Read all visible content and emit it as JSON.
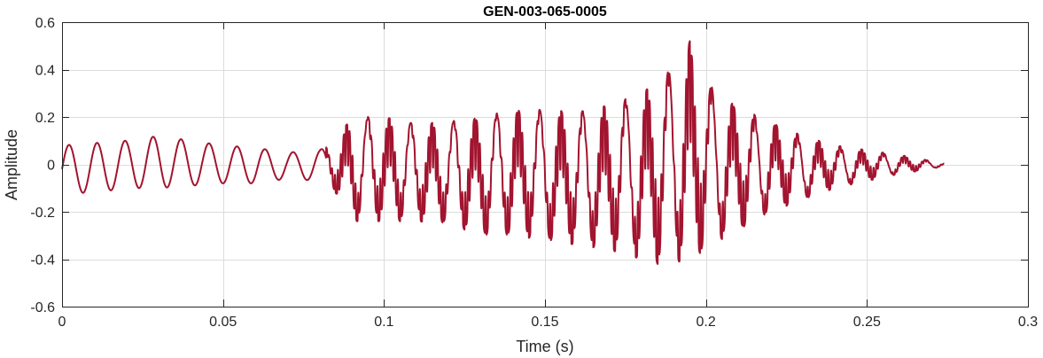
{
  "chart_data": {
    "type": "line",
    "title": "GEN-003-065-0005",
    "xlabel": "Time (s)",
    "ylabel": "Amplitude",
    "xlim": [
      0,
      0.3
    ],
    "ylim": [
      -0.6,
      0.6
    ],
    "grid": true,
    "xticks": [
      0,
      0.05,
      0.1,
      0.15,
      0.2,
      0.25,
      0.3
    ],
    "xtick_labels": [
      "0",
      "0.05",
      "0.1",
      "0.15",
      "0.2",
      "0.25",
      "0.3"
    ],
    "yticks": [
      -0.6,
      -0.4,
      -0.2,
      0,
      0.2,
      0.4,
      0.6
    ],
    "ytick_labels": [
      "-0.6",
      "-0.4",
      "-0.2",
      "0",
      "0.2",
      "0.4",
      "0.6"
    ],
    "line_color": "#a2142f",
    "series": [
      {
        "x": [
          0,
          0.01,
          0.02,
          0.03,
          0.04,
          0.05,
          0.06,
          0.07,
          0.08,
          0.085,
          0.09,
          0.1,
          0.11,
          0.12,
          0.13,
          0.14,
          0.15,
          0.16,
          0.17,
          0.18,
          0.185,
          0.19,
          0.195,
          0.2,
          0.21,
          0.22,
          0.23,
          0.24,
          0.25,
          0.26,
          0.27,
          0.274
        ],
        "upper": [
          0.08,
          0.09,
          0.1,
          0.12,
          0.1,
          0.08,
          0.07,
          0.05,
          0.06,
          0.1,
          0.2,
          0.2,
          0.17,
          0.18,
          0.2,
          0.23,
          0.23,
          0.22,
          0.25,
          0.3,
          0.35,
          0.42,
          0.52,
          0.35,
          0.24,
          0.18,
          0.12,
          0.08,
          0.06,
          0.04,
          0.015,
          0.005
        ],
        "lower": [
          -0.12,
          -0.12,
          -0.1,
          -0.1,
          -0.09,
          -0.08,
          -0.08,
          -0.06,
          -0.07,
          -0.12,
          -0.24,
          -0.24,
          -0.24,
          -0.25,
          -0.3,
          -0.3,
          -0.32,
          -0.34,
          -0.36,
          -0.4,
          -0.42,
          -0.4,
          -0.43,
          -0.35,
          -0.28,
          -0.2,
          -0.15,
          -0.1,
          -0.07,
          -0.04,
          -0.02,
          -0.005
        ]
      }
    ]
  }
}
